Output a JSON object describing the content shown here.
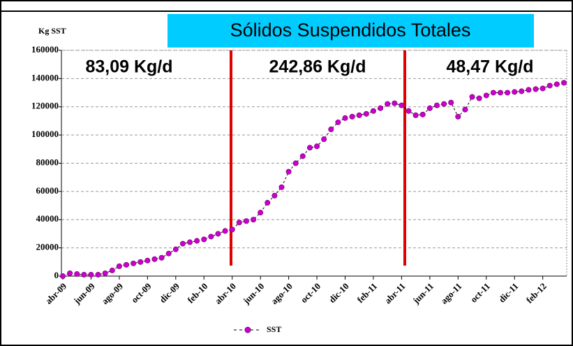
{
  "chart_data": {
    "type": "line",
    "title": "Sólidos Suspendidos Totales",
    "y_label": "Kg SST",
    "annotations": [
      "83,09 Kg/d",
      "242,86 Kg/d",
      "48,47 Kg/d"
    ],
    "categories": [
      "abr-09",
      null,
      null,
      null,
      "jun-09",
      null,
      null,
      null,
      "ago-09",
      null,
      null,
      null,
      "oct-09",
      null,
      null,
      null,
      "dic-09",
      null,
      null,
      null,
      "feb-10",
      null,
      null,
      null,
      "abr-10",
      null,
      null,
      null,
      "jun-10",
      null,
      null,
      null,
      "ago-10",
      null,
      null,
      null,
      "oct-10",
      null,
      null,
      null,
      "dic-10",
      null,
      null,
      null,
      "feb-11",
      null,
      null,
      null,
      "abr-11",
      null,
      null,
      null,
      "jun-11",
      null,
      null,
      null,
      "ago-11",
      null,
      null,
      null,
      "oct-11",
      null,
      null,
      null,
      "dic-11",
      null,
      null,
      null,
      "feb-12",
      null,
      null,
      null
    ],
    "series": [
      {
        "name": "SST",
        "color": "#cc00cc",
        "values": [
          0,
          2000,
          1500,
          1000,
          1000,
          1000,
          2000,
          4000,
          7000,
          8000,
          9000,
          10000,
          11000,
          12000,
          13000,
          16000,
          19000,
          23000,
          24000,
          25000,
          26000,
          28000,
          30000,
          32000,
          33000,
          38000,
          39000,
          40000,
          45000,
          52000,
          57000,
          63000,
          74000,
          80000,
          85000,
          91000,
          92000,
          97000,
          104000,
          109000,
          112000,
          113000,
          114000,
          115000,
          117000,
          119000,
          122000,
          122500,
          121000,
          117000,
          114000,
          114500,
          119000,
          121000,
          122000,
          123000,
          113000,
          118000,
          127000,
          126000,
          128000,
          130000,
          130000,
          130000,
          130500,
          131000,
          132000,
          132500,
          133000,
          135000,
          136000,
          137000
        ]
      }
    ],
    "ylim": [
      0,
      160000
    ],
    "yticks": [
      0,
      20000,
      40000,
      60000,
      80000,
      100000,
      120000,
      140000,
      160000
    ],
    "grid": true
  }
}
